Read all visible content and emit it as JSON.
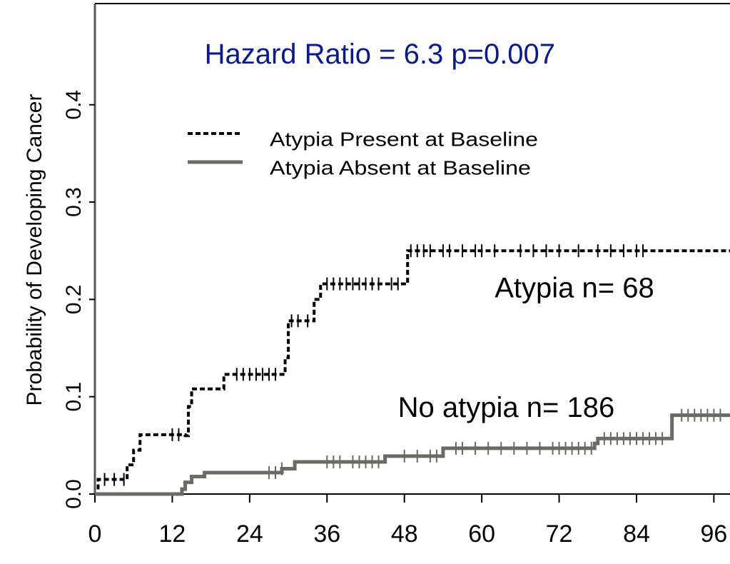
{
  "chart_data": {
    "type": "step",
    "y_label": "Probability of Developing Cancer",
    "annotations": [
      {
        "text": "Hazard Ratio = 6.3  p=0.007",
        "x": 17,
        "y": 0.45,
        "color": "#0a1a8c"
      },
      {
        "text": "Atypia n= 68",
        "x": 62,
        "y": 0.21,
        "color": "#000000"
      },
      {
        "text": "No atypia n= 186",
        "x": 47,
        "y": 0.087,
        "color": "#000000"
      }
    ],
    "xlim": [
      0,
      98.5
    ],
    "ylim": [
      0,
      0.504
    ],
    "xticks": [
      0,
      12,
      24,
      36,
      48,
      60,
      72,
      84,
      96
    ],
    "yticks": [
      {
        "value": 0,
        "label": "0.0"
      },
      0.1,
      0.2,
      0.3,
      0.4
    ],
    "legend": "top-left",
    "series": [
      {
        "name": "Atypia Present at Baseline",
        "color": "#000000",
        "style": "dotted",
        "x": [
          0,
          0.5,
          5,
          6,
          7,
          14,
          14.5,
          15,
          20,
          29.5,
          30,
          34,
          35,
          48.5,
          98.5
        ],
        "values": [
          0,
          0.015,
          0.03,
          0.045,
          0.061,
          0.06,
          0.09,
          0.108,
          0.123,
          0.14,
          0.178,
          0.2,
          0.216,
          0.25,
          0.25
        ],
        "censored": [
          1.5,
          3,
          4.5,
          12,
          13,
          22,
          23,
          24,
          25,
          26,
          27,
          28,
          30.5,
          31.5,
          33,
          36,
          37,
          38,
          39,
          40,
          41,
          42,
          43,
          44,
          46,
          47,
          49,
          50,
          51,
          52,
          54,
          55,
          57,
          59,
          60,
          62,
          66,
          68,
          70,
          72,
          75,
          78,
          80,
          82,
          84,
          85
        ]
      },
      {
        "name": "Atypia Absent at Baseline",
        "color": "#6b6b63",
        "style": "solid",
        "x": [
          0,
          12,
          13.5,
          14,
          15,
          17,
          29,
          31,
          45,
          54,
          77.5,
          78,
          89.5,
          98.5
        ],
        "values": [
          0,
          0,
          0.005,
          0.012,
          0.018,
          0.022,
          0.026,
          0.033,
          0.039,
          0.047,
          0.052,
          0.057,
          0.081,
          0.081
        ],
        "censored": [
          27,
          28,
          29,
          36,
          37,
          38,
          40,
          41,
          42,
          43,
          44,
          48,
          50,
          52,
          53,
          56,
          57,
          59,
          61,
          63,
          65,
          67,
          69,
          71,
          72,
          73,
          74,
          75,
          76,
          77,
          79,
          80,
          81,
          82,
          83,
          84,
          85,
          86,
          87,
          88,
          91,
          92,
          93,
          94,
          95,
          96,
          97
        ]
      }
    ]
  }
}
